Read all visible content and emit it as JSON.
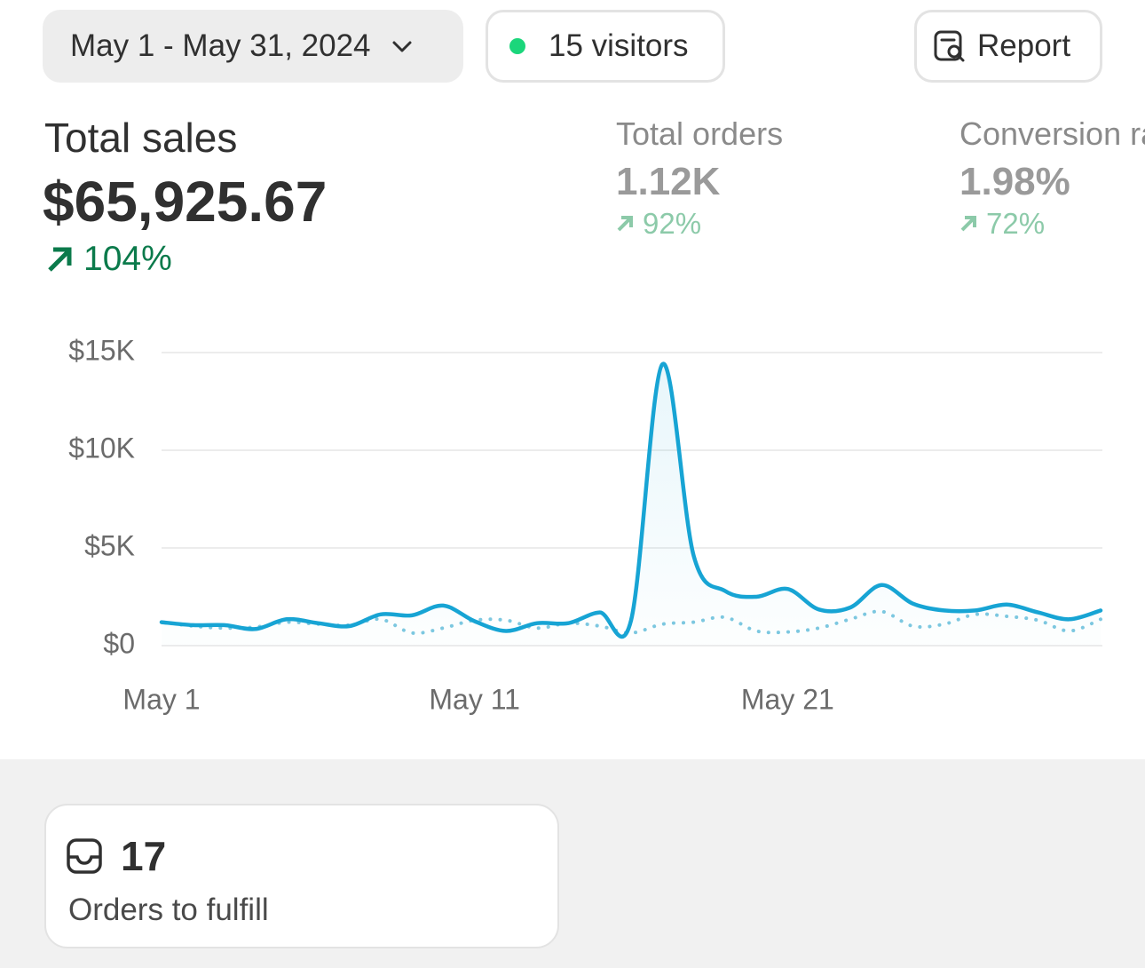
{
  "filters": {
    "date_range": "May 1 - May 31, 2024",
    "visitors": "15 visitors",
    "report": "Report"
  },
  "metrics": [
    {
      "label": "Total sales",
      "value": "$65,925.67",
      "change": "104%"
    },
    {
      "label": "Total orders",
      "value": "1.12K",
      "change": "92%"
    },
    {
      "label": "Conversion rate",
      "value": "1.98%",
      "change": "72%"
    }
  ],
  "chart_data": {
    "type": "line",
    "categories": [
      "May 1",
      null,
      null,
      null,
      null,
      null,
      null,
      null,
      null,
      null,
      "May 11",
      null,
      null,
      null,
      null,
      null,
      null,
      null,
      null,
      null,
      "May 21",
      null,
      null,
      null,
      null,
      null,
      null,
      null,
      null,
      null,
      null
    ],
    "series": [
      {
        "color": "#17a4d4",
        "dash": "solid",
        "area": true,
        "values": [
          1200,
          1050,
          1050,
          850,
          1350,
          1150,
          1000,
          1600,
          1550,
          2050,
          1250,
          750,
          1150,
          1150,
          1700,
          1300,
          14400,
          4600,
          2800,
          2500,
          2900,
          1850,
          1950,
          3100,
          2150,
          1800,
          1800,
          2100,
          1700,
          1350,
          1800
        ]
      },
      {
        "color": "#7ec8e0",
        "dash": "dotted",
        "area": false,
        "values": [
          1200,
          1000,
          900,
          950,
          1200,
          1100,
          1050,
          1350,
          650,
          900,
          1300,
          1300,
          900,
          1150,
          1000,
          650,
          1100,
          1200,
          1450,
          750,
          700,
          900,
          1350,
          1750,
          1000,
          1100,
          1600,
          1500,
          1300,
          750,
          1350
        ]
      }
    ],
    "ylim": [
      0,
      15000
    ],
    "yticks": [
      {
        "value": 0,
        "label": "$0"
      },
      {
        "value": 5000,
        "label": "$5K"
      },
      {
        "value": 10000,
        "label": "$10K"
      },
      {
        "value": 15000,
        "label": "$15K"
      }
    ],
    "grid": true
  },
  "card": {
    "value": "17",
    "label": "Orders to fulfill"
  }
}
